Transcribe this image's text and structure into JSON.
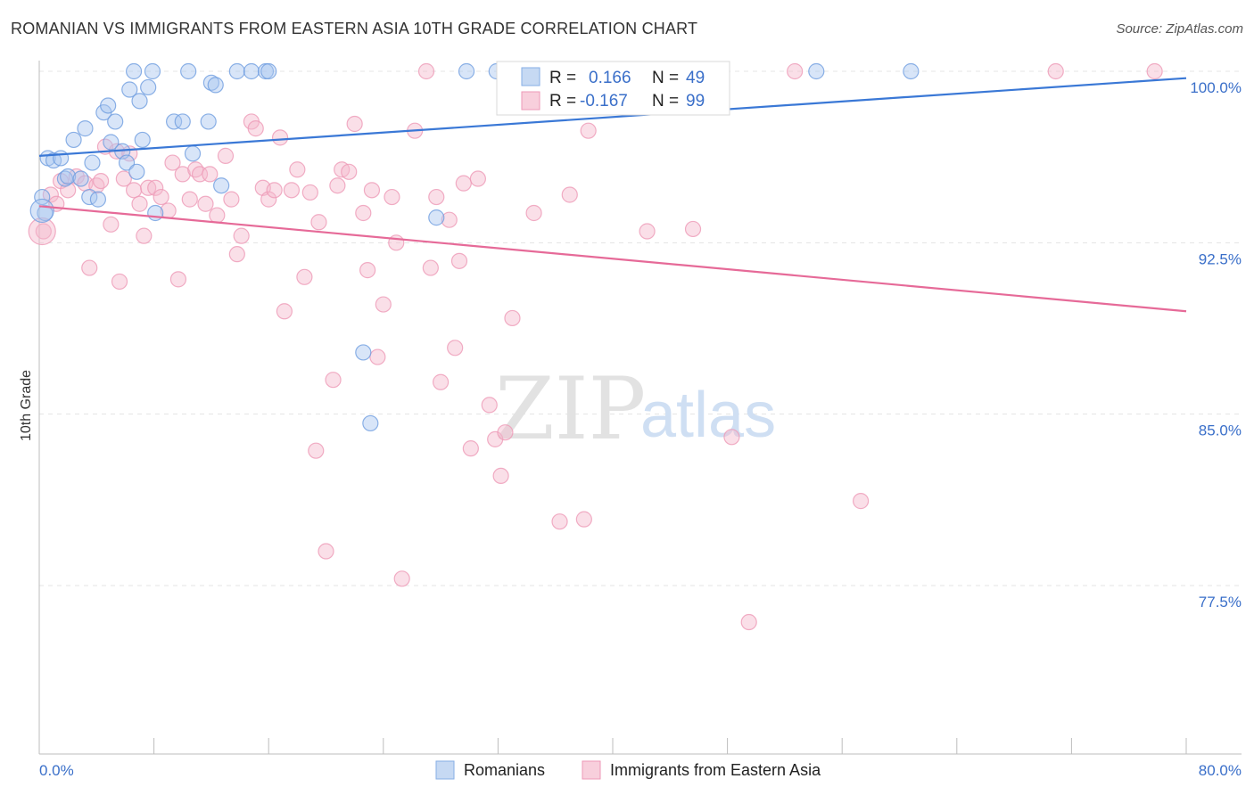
{
  "title": "ROMANIAN VS IMMIGRANTS FROM EASTERN ASIA 10TH GRADE CORRELATION CHART",
  "source": "Source: ZipAtlas.com",
  "watermark": {
    "zip": "ZIP",
    "atlas": "atlas"
  },
  "colors": {
    "blue": "#3a78d6",
    "pink": "#e66a98",
    "blue_fill": "#a9c6ef",
    "pink_fill": "#f5b8cc",
    "label_blue": "#3a6fc9"
  },
  "legend": {
    "rows": [
      {
        "r_label": "R =",
        "r_value": "0.166",
        "n_label": "N =",
        "n_value": "49"
      },
      {
        "r_label": "R =",
        "r_value": "-0.167",
        "n_label": "N =",
        "n_value": "99"
      }
    ]
  },
  "bottom_legend": [
    "Romanians",
    "Immigrants from Eastern Asia"
  ],
  "chart_data": {
    "type": "scatter",
    "xlabel": "",
    "ylabel": "10th Grade",
    "xlim": [
      0,
      80
    ],
    "ylim": [
      71.0,
      101.5
    ],
    "x_tick_labels": [
      "0.0%",
      "80.0%"
    ],
    "y_ticks": [
      77.5,
      85.0,
      92.5,
      100.0
    ],
    "y_tick_labels": [
      "77.5%",
      "85.0%",
      "92.5%",
      "100.0%"
    ],
    "grid": true,
    "legend_position": "top-center",
    "series": [
      {
        "name": "Romanians",
        "trend": {
          "x": [
            0,
            80
          ],
          "y": [
            96.3,
            99.7
          ]
        },
        "points": [
          [
            0.2,
            94.5
          ],
          [
            0.4,
            93.8
          ],
          [
            0.6,
            96.2
          ],
          [
            1.0,
            96.1
          ],
          [
            1.5,
            96.2
          ],
          [
            1.8,
            95.3
          ],
          [
            2.0,
            95.4
          ],
          [
            2.4,
            97.0
          ],
          [
            2.9,
            95.3
          ],
          [
            3.2,
            97.5
          ],
          [
            3.5,
            94.5
          ],
          [
            3.7,
            96.0
          ],
          [
            4.1,
            94.4
          ],
          [
            4.5,
            98.2
          ],
          [
            4.8,
            98.5
          ],
          [
            5.0,
            96.9
          ],
          [
            5.3,
            97.8
          ],
          [
            5.8,
            96.5
          ],
          [
            6.1,
            96.0
          ],
          [
            6.3,
            99.2
          ],
          [
            6.6,
            100.0
          ],
          [
            6.8,
            95.6
          ],
          [
            7.0,
            98.7
          ],
          [
            7.2,
            97.0
          ],
          [
            7.6,
            99.3
          ],
          [
            7.9,
            100.0
          ],
          [
            8.1,
            93.8
          ],
          [
            9.4,
            97.8
          ],
          [
            10.0,
            97.8
          ],
          [
            10.4,
            100.0
          ],
          [
            10.7,
            96.4
          ],
          [
            11.8,
            97.8
          ],
          [
            12.0,
            99.5
          ],
          [
            12.3,
            99.4
          ],
          [
            12.7,
            95.0
          ],
          [
            13.8,
            100.0
          ],
          [
            14.8,
            100.0
          ],
          [
            15.8,
            100.0
          ],
          [
            16.0,
            100.0
          ],
          [
            22.6,
            87.7
          ],
          [
            23.1,
            84.6
          ],
          [
            27.7,
            93.6
          ],
          [
            29.8,
            100.0
          ],
          [
            31.9,
            100.0
          ],
          [
            54.2,
            100.0
          ],
          [
            60.8,
            100.0
          ]
        ]
      },
      {
        "name": "Immigrants from Eastern Asia",
        "trend": {
          "x": [
            0,
            80
          ],
          "y": [
            94.1,
            89.5
          ]
        },
        "points": [
          [
            0.3,
            93.0
          ],
          [
            0.8,
            94.6
          ],
          [
            1.2,
            94.2
          ],
          [
            1.5,
            95.2
          ],
          [
            2.0,
            94.8
          ],
          [
            2.6,
            95.4
          ],
          [
            3.2,
            95.1
          ],
          [
            3.5,
            91.4
          ],
          [
            4.0,
            95.0
          ],
          [
            4.3,
            95.2
          ],
          [
            4.6,
            96.7
          ],
          [
            5.0,
            93.3
          ],
          [
            5.4,
            96.5
          ],
          [
            5.6,
            90.8
          ],
          [
            5.9,
            95.3
          ],
          [
            6.3,
            96.4
          ],
          [
            6.6,
            94.8
          ],
          [
            7.0,
            94.2
          ],
          [
            7.3,
            92.8
          ],
          [
            7.6,
            94.9
          ],
          [
            8.1,
            94.9
          ],
          [
            8.5,
            94.5
          ],
          [
            9.0,
            93.9
          ],
          [
            9.3,
            96.0
          ],
          [
            9.7,
            90.9
          ],
          [
            10.0,
            95.5
          ],
          [
            10.5,
            94.4
          ],
          [
            10.9,
            95.7
          ],
          [
            11.2,
            95.5
          ],
          [
            11.6,
            94.2
          ],
          [
            11.9,
            95.5
          ],
          [
            12.4,
            93.7
          ],
          [
            13.0,
            96.3
          ],
          [
            13.4,
            94.4
          ],
          [
            13.8,
            92.0
          ],
          [
            14.1,
            92.8
          ],
          [
            14.8,
            97.8
          ],
          [
            15.1,
            97.5
          ],
          [
            15.6,
            94.9
          ],
          [
            16.0,
            94.4
          ],
          [
            16.4,
            94.8
          ],
          [
            16.8,
            97.1
          ],
          [
            17.1,
            89.5
          ],
          [
            17.6,
            94.8
          ],
          [
            18.0,
            95.7
          ],
          [
            18.5,
            91.0
          ],
          [
            18.9,
            94.7
          ],
          [
            19.3,
            83.4
          ],
          [
            19.5,
            93.4
          ],
          [
            20.0,
            79.0
          ],
          [
            20.5,
            86.5
          ],
          [
            20.8,
            95.0
          ],
          [
            21.1,
            95.7
          ],
          [
            21.6,
            95.6
          ],
          [
            22.0,
            97.7
          ],
          [
            22.6,
            93.8
          ],
          [
            22.9,
            91.3
          ],
          [
            23.2,
            94.8
          ],
          [
            23.6,
            87.5
          ],
          [
            24.0,
            89.8
          ],
          [
            24.6,
            94.5
          ],
          [
            24.9,
            92.5
          ],
          [
            25.3,
            77.8
          ],
          [
            26.2,
            97.4
          ],
          [
            27.0,
            100.0
          ],
          [
            27.3,
            91.4
          ],
          [
            27.7,
            94.5
          ],
          [
            28.0,
            86.4
          ],
          [
            28.6,
            93.5
          ],
          [
            29.0,
            87.9
          ],
          [
            29.3,
            91.7
          ],
          [
            29.6,
            95.1
          ],
          [
            30.1,
            83.5
          ],
          [
            30.6,
            95.3
          ],
          [
            31.4,
            85.4
          ],
          [
            31.8,
            83.9
          ],
          [
            32.2,
            82.3
          ],
          [
            32.5,
            84.2
          ],
          [
            33.0,
            89.2
          ],
          [
            34.5,
            93.8
          ],
          [
            36.3,
            80.3
          ],
          [
            37.0,
            94.6
          ],
          [
            38.0,
            80.4
          ],
          [
            38.3,
            97.4
          ],
          [
            38.9,
            100.0
          ],
          [
            39.8,
            100.0
          ],
          [
            42.4,
            93.0
          ],
          [
            43.6,
            100.0
          ],
          [
            45.6,
            93.1
          ],
          [
            48.3,
            84.0
          ],
          [
            49.5,
            75.9
          ],
          [
            52.7,
            100.0
          ],
          [
            57.3,
            81.2
          ],
          [
            70.9,
            100.0
          ],
          [
            77.8,
            100.0
          ]
        ]
      }
    ]
  }
}
